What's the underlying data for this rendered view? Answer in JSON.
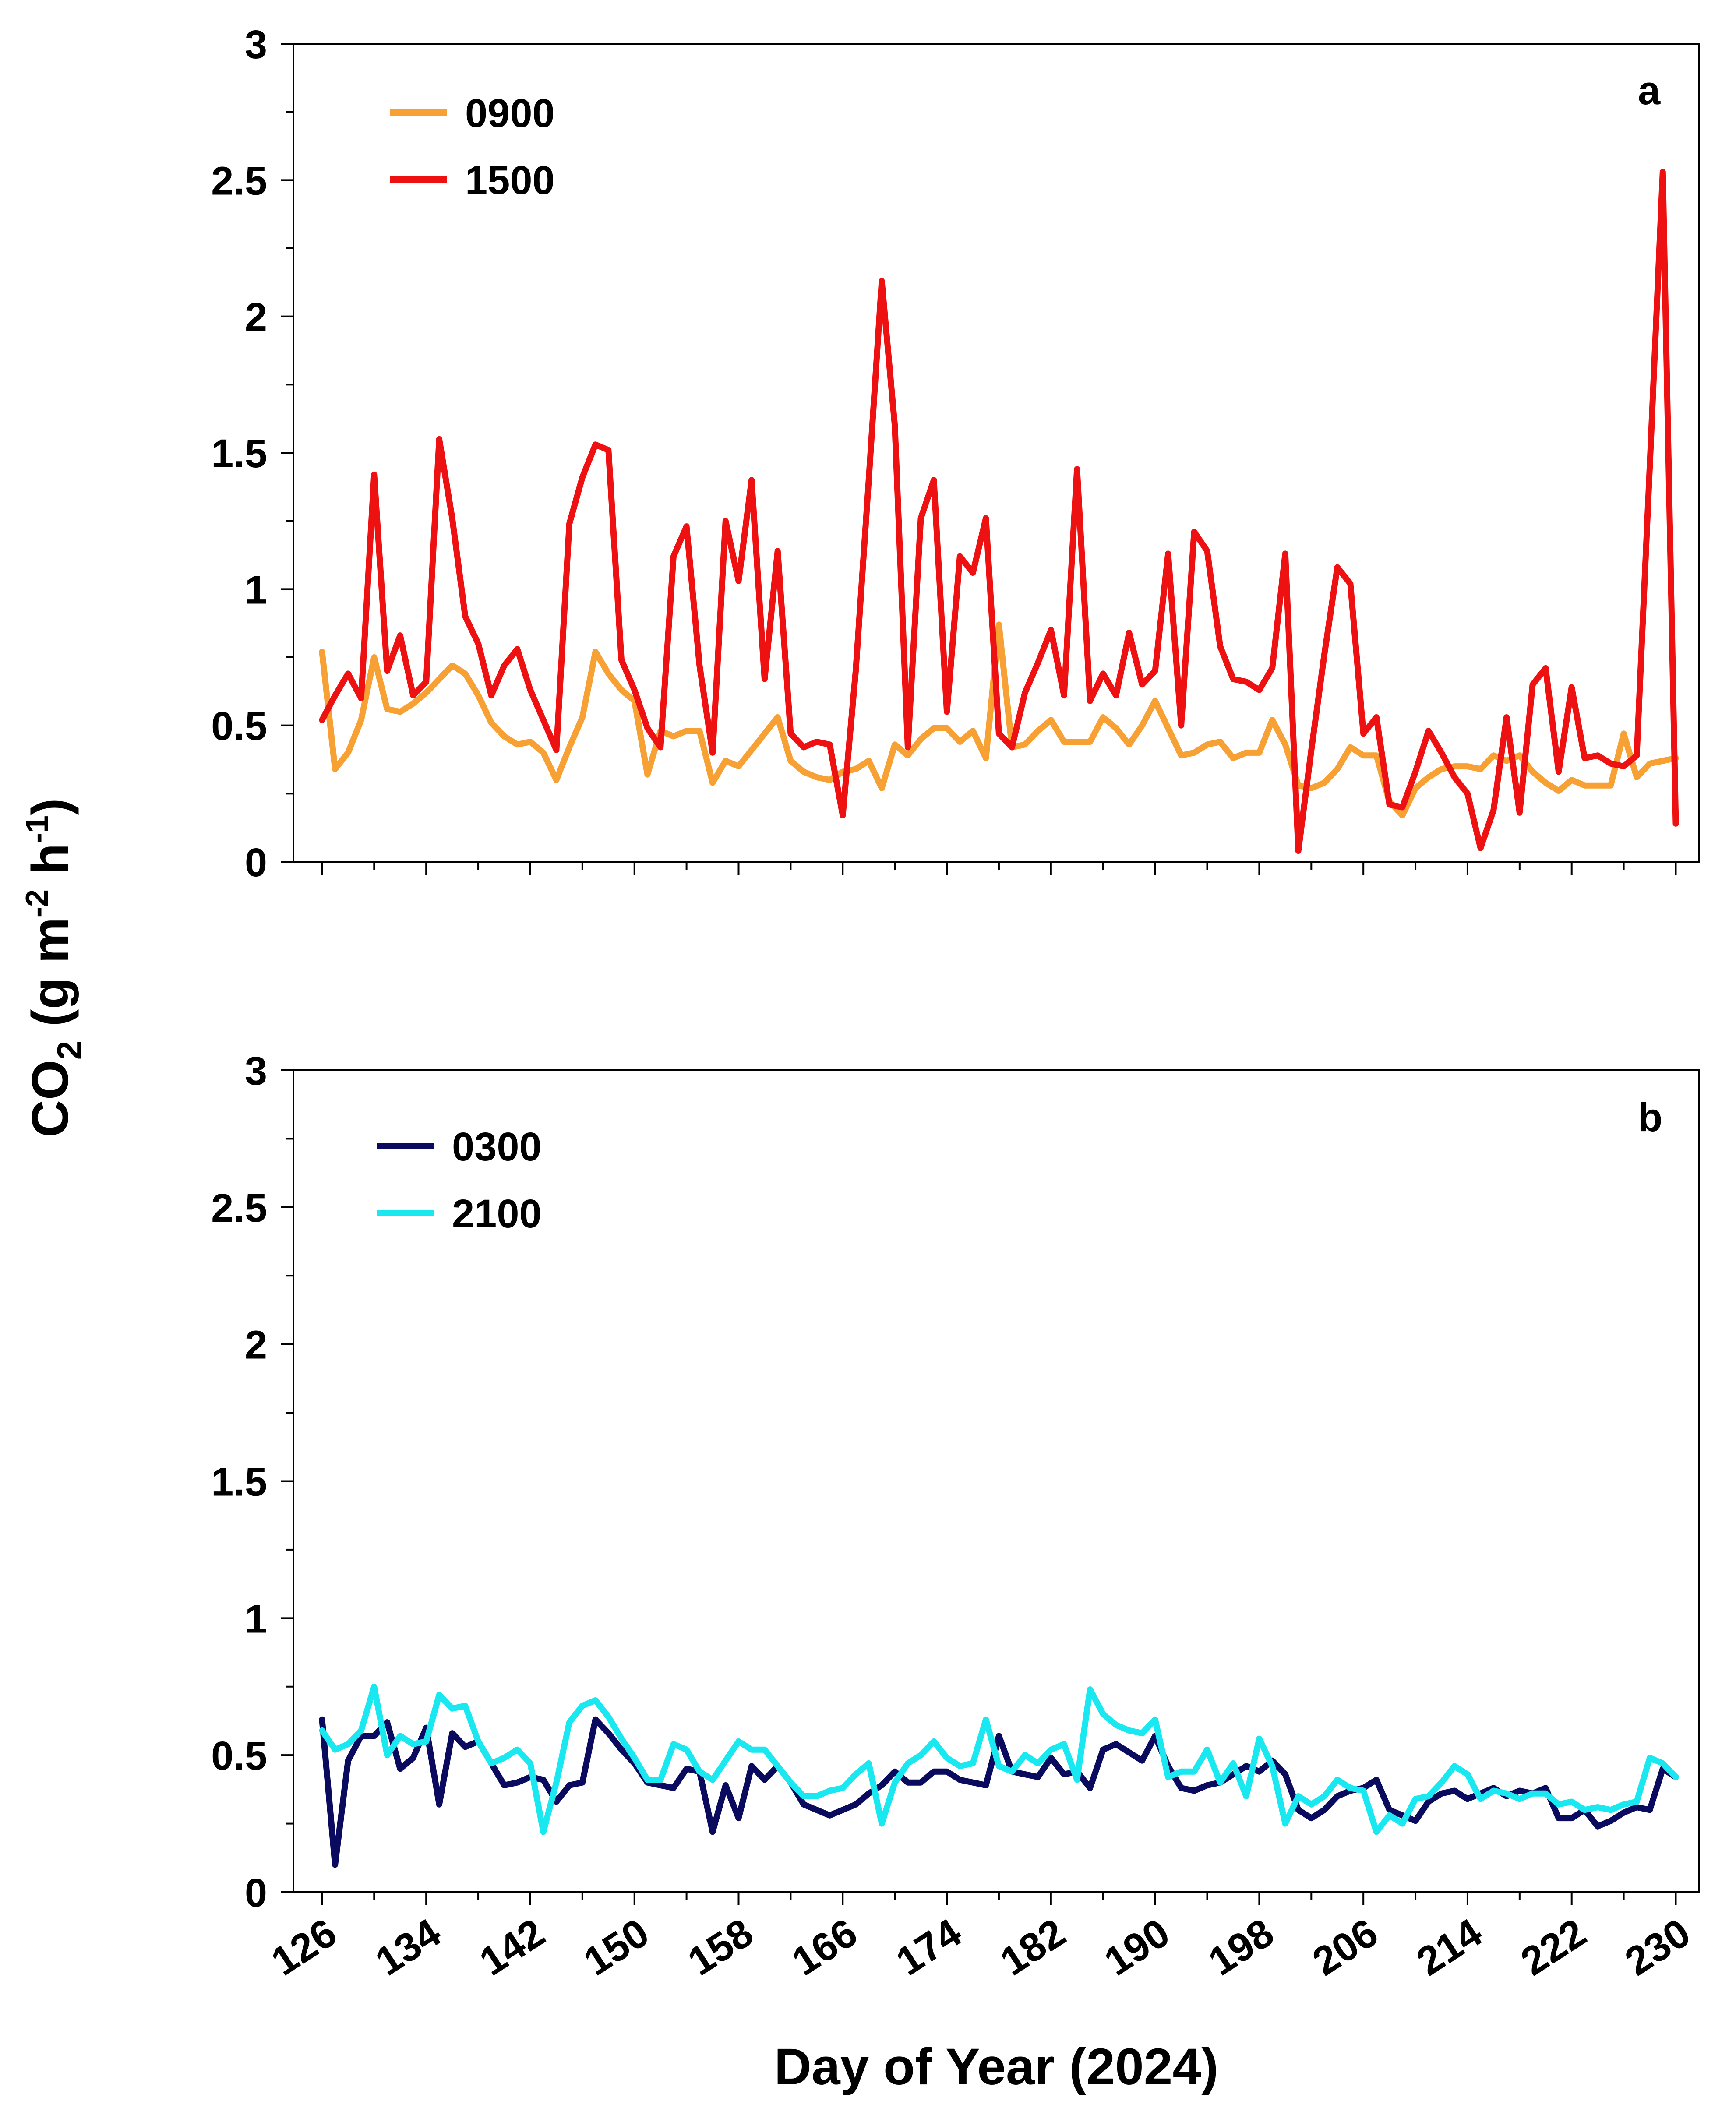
{
  "figure": {
    "ylabel": "CO",
    "ylabel_sub": "2",
    "ylabel_unit_a": " (g m",
    "ylabel_sup1": "-2",
    "ylabel_unit_b": " h",
    "ylabel_sup2": "-1",
    "ylabel_unit_c": ")",
    "xlabel": "Day of Year (2024)"
  },
  "chart_data": [
    {
      "type": "line",
      "panel_label": "a",
      "title": "",
      "xlabel": "Day of Year (2024)",
      "ylabel": "CO2 (g m-2 h-1)",
      "xlim": [
        123.8,
        231.8
      ],
      "ylim": [
        0,
        3
      ],
      "yticks": [
        0,
        0.5,
        1,
        1.5,
        2,
        2.5,
        3
      ],
      "ytick_labels": [
        "0",
        "0.5",
        "1",
        "1.5",
        "2",
        "2.5",
        "3"
      ],
      "x": [
        126,
        127,
        128,
        129,
        130,
        131,
        132,
        133,
        134,
        135,
        136,
        137,
        138,
        139,
        140,
        141,
        142,
        143,
        144,
        145,
        146,
        147,
        148,
        149,
        150,
        151,
        152,
        153,
        154,
        155,
        156,
        157,
        158,
        159,
        160,
        161,
        162,
        163,
        164,
        165,
        166,
        167,
        168,
        169,
        170,
        171,
        172,
        173,
        174,
        175,
        176,
        177,
        178,
        179,
        180,
        181,
        182,
        183,
        184,
        185,
        186,
        187,
        188,
        189,
        190,
        191,
        192,
        193,
        194,
        195,
        196,
        197,
        198,
        199,
        200,
        201,
        202,
        203,
        204,
        205,
        206,
        207,
        208,
        209,
        210,
        211,
        212,
        213,
        214,
        215,
        216,
        217,
        218,
        219,
        220,
        221,
        222,
        223,
        224,
        225,
        226,
        227,
        228,
        229,
        230
      ],
      "series": [
        {
          "name": "0900",
          "color": "#f7a034",
          "values": [
            0.77,
            0.34,
            0.4,
            0.52,
            0.75,
            0.56,
            0.55,
            0.58,
            0.62,
            0.67,
            0.72,
            0.69,
            0.61,
            0.51,
            0.46,
            0.43,
            0.44,
            0.4,
            0.3,
            0.42,
            0.53,
            0.77,
            0.69,
            0.63,
            0.59,
            0.32,
            0.48,
            0.46,
            0.48,
            0.48,
            0.29,
            0.37,
            0.35,
            0.41,
            0.47,
            0.53,
            0.37,
            0.33,
            0.31,
            0.3,
            0.33,
            0.34,
            0.37,
            0.27,
            0.43,
            0.39,
            0.45,
            0.49,
            0.49,
            0.44,
            0.48,
            0.38,
            0.87,
            0.42,
            0.43,
            0.48,
            0.52,
            0.44,
            0.44,
            0.44,
            0.53,
            0.49,
            0.43,
            0.5,
            0.59,
            0.49,
            0.39,
            0.4,
            0.43,
            0.44,
            0.38,
            0.4,
            0.4,
            0.52,
            0.43,
            0.28,
            0.27,
            0.29,
            0.34,
            0.42,
            0.39,
            0.39,
            0.22,
            0.17,
            0.27,
            0.31,
            0.34,
            0.35,
            0.35,
            0.34,
            0.39,
            0.37,
            0.39,
            0.33,
            0.29,
            0.26,
            0.3,
            0.28,
            0.28,
            0.28,
            0.47,
            0.31,
            0.36,
            0.37,
            0.38
          ]
        },
        {
          "name": "1500",
          "color": "#ee1111",
          "values": [
            0.52,
            0.61,
            0.69,
            0.6,
            1.42,
            0.7,
            0.83,
            0.61,
            0.66,
            1.55,
            1.26,
            0.9,
            0.8,
            0.61,
            0.72,
            0.78,
            0.63,
            0.52,
            0.41,
            1.24,
            1.41,
            1.53,
            1.51,
            0.74,
            0.63,
            0.49,
            0.42,
            1.12,
            1.23,
            0.72,
            0.4,
            1.25,
            1.03,
            1.4,
            0.67,
            1.14,
            0.47,
            0.42,
            0.44,
            0.43,
            0.17,
            0.7,
            1.4,
            2.13,
            1.6,
            0.42,
            1.26,
            1.4,
            0.55,
            1.12,
            1.06,
            1.26,
            0.47,
            0.42,
            0.62,
            0.73,
            0.85,
            0.61,
            1.44,
            0.59,
            0.69,
            0.61,
            0.84,
            0.65,
            0.7,
            1.13,
            0.5,
            1.21,
            1.14,
            0.79,
            0.67,
            0.66,
            0.63,
            0.71,
            1.13,
            0.04,
            0.41,
            0.76,
            1.08,
            1.02,
            0.47,
            0.53,
            0.21,
            0.2,
            0.33,
            0.48,
            0.4,
            0.31,
            0.25,
            0.05,
            0.19,
            0.53,
            0.18,
            0.65,
            0.71,
            0.33,
            0.64,
            0.38,
            0.39,
            0.36,
            0.35,
            0.39,
            1.45,
            2.53,
            0.14
          ]
        }
      ],
      "legend": "top-left"
    },
    {
      "type": "line",
      "panel_label": "b",
      "title": "",
      "xlabel": "Day of Year (2024)",
      "ylabel": "CO2 (g m-2 h-1)",
      "xlim": [
        123.8,
        231.8
      ],
      "ylim": [
        0,
        3
      ],
      "yticks": [
        0,
        0.5,
        1,
        1.5,
        2,
        2.5,
        3
      ],
      "ytick_labels": [
        "0",
        "0.5",
        "1",
        "1.5",
        "2",
        "2.5",
        "3"
      ],
      "xticks": [
        126,
        134,
        142,
        150,
        158,
        166,
        174,
        182,
        190,
        198,
        206,
        214,
        222,
        230
      ],
      "xtick_labels": [
        "126",
        "134",
        "142",
        "150",
        "158",
        "166",
        "174",
        "182",
        "190",
        "198",
        "206",
        "214",
        "222",
        "230"
      ],
      "x": [
        126,
        127,
        128,
        129,
        130,
        131,
        132,
        133,
        134,
        135,
        136,
        137,
        138,
        139,
        140,
        141,
        142,
        143,
        144,
        145,
        146,
        147,
        148,
        149,
        150,
        151,
        152,
        153,
        154,
        155,
        156,
        157,
        158,
        159,
        160,
        161,
        162,
        163,
        164,
        165,
        166,
        167,
        168,
        169,
        170,
        171,
        172,
        173,
        174,
        175,
        176,
        177,
        178,
        179,
        180,
        181,
        182,
        183,
        184,
        185,
        186,
        187,
        188,
        189,
        190,
        191,
        192,
        193,
        194,
        195,
        196,
        197,
        198,
        199,
        200,
        201,
        202,
        203,
        204,
        205,
        206,
        207,
        208,
        209,
        210,
        211,
        212,
        213,
        214,
        215,
        216,
        217,
        218,
        219,
        220,
        221,
        222,
        223,
        224,
        225,
        226,
        227,
        228,
        229,
        230
      ],
      "series": [
        {
          "name": "0300",
          "color": "#0a0a5e",
          "values": [
            0.63,
            0.1,
            0.48,
            0.57,
            0.57,
            0.62,
            0.45,
            0.49,
            0.6,
            0.32,
            0.58,
            0.53,
            0.55,
            0.47,
            0.39,
            0.4,
            0.42,
            0.41,
            0.33,
            0.39,
            0.4,
            0.63,
            0.58,
            0.52,
            0.47,
            0.4,
            0.39,
            0.38,
            0.45,
            0.44,
            0.22,
            0.39,
            0.27,
            0.46,
            0.41,
            0.46,
            0.4,
            0.32,
            0.3,
            0.28,
            0.3,
            0.32,
            0.36,
            0.39,
            0.44,
            0.4,
            0.4,
            0.44,
            0.44,
            0.41,
            0.4,
            0.39,
            0.57,
            0.44,
            0.43,
            0.42,
            0.49,
            0.43,
            0.44,
            0.38,
            0.52,
            0.54,
            0.51,
            0.48,
            0.57,
            0.46,
            0.38,
            0.37,
            0.39,
            0.4,
            0.43,
            0.46,
            0.44,
            0.48,
            0.43,
            0.3,
            0.27,
            0.3,
            0.35,
            0.37,
            0.38,
            0.41,
            0.3,
            0.28,
            0.26,
            0.33,
            0.36,
            0.37,
            0.34,
            0.36,
            0.38,
            0.35,
            0.37,
            0.36,
            0.38,
            0.27,
            0.27,
            0.3,
            0.24,
            0.26,
            0.29,
            0.31,
            0.3,
            0.45,
            0.42
          ]
        },
        {
          "name": "2100",
          "color": "#1ae8f0",
          "values": [
            0.59,
            0.52,
            0.54,
            0.59,
            0.75,
            0.5,
            0.57,
            0.54,
            0.55,
            0.72,
            0.67,
            0.68,
            0.55,
            0.47,
            0.49,
            0.52,
            0.47,
            0.22,
            0.4,
            0.62,
            0.68,
            0.7,
            0.64,
            0.56,
            0.49,
            0.41,
            0.41,
            0.54,
            0.52,
            0.44,
            0.41,
            0.48,
            0.55,
            0.52,
            0.52,
            0.46,
            0.4,
            0.35,
            0.35,
            0.37,
            0.38,
            0.43,
            0.47,
            0.25,
            0.4,
            0.47,
            0.5,
            0.55,
            0.49,
            0.46,
            0.47,
            0.63,
            0.46,
            0.44,
            0.5,
            0.47,
            0.52,
            0.54,
            0.41,
            0.74,
            0.65,
            0.61,
            0.59,
            0.58,
            0.63,
            0.42,
            0.44,
            0.44,
            0.52,
            0.4,
            0.47,
            0.35,
            0.56,
            0.46,
            0.25,
            0.35,
            0.32,
            0.35,
            0.41,
            0.38,
            0.37,
            0.22,
            0.28,
            0.25,
            0.34,
            0.35,
            0.4,
            0.46,
            0.43,
            0.34,
            0.37,
            0.36,
            0.34,
            0.36,
            0.36,
            0.32,
            0.33,
            0.3,
            0.31,
            0.3,
            0.32,
            0.33,
            0.49,
            0.47,
            0.42
          ]
        }
      ],
      "legend": "top-left"
    }
  ]
}
